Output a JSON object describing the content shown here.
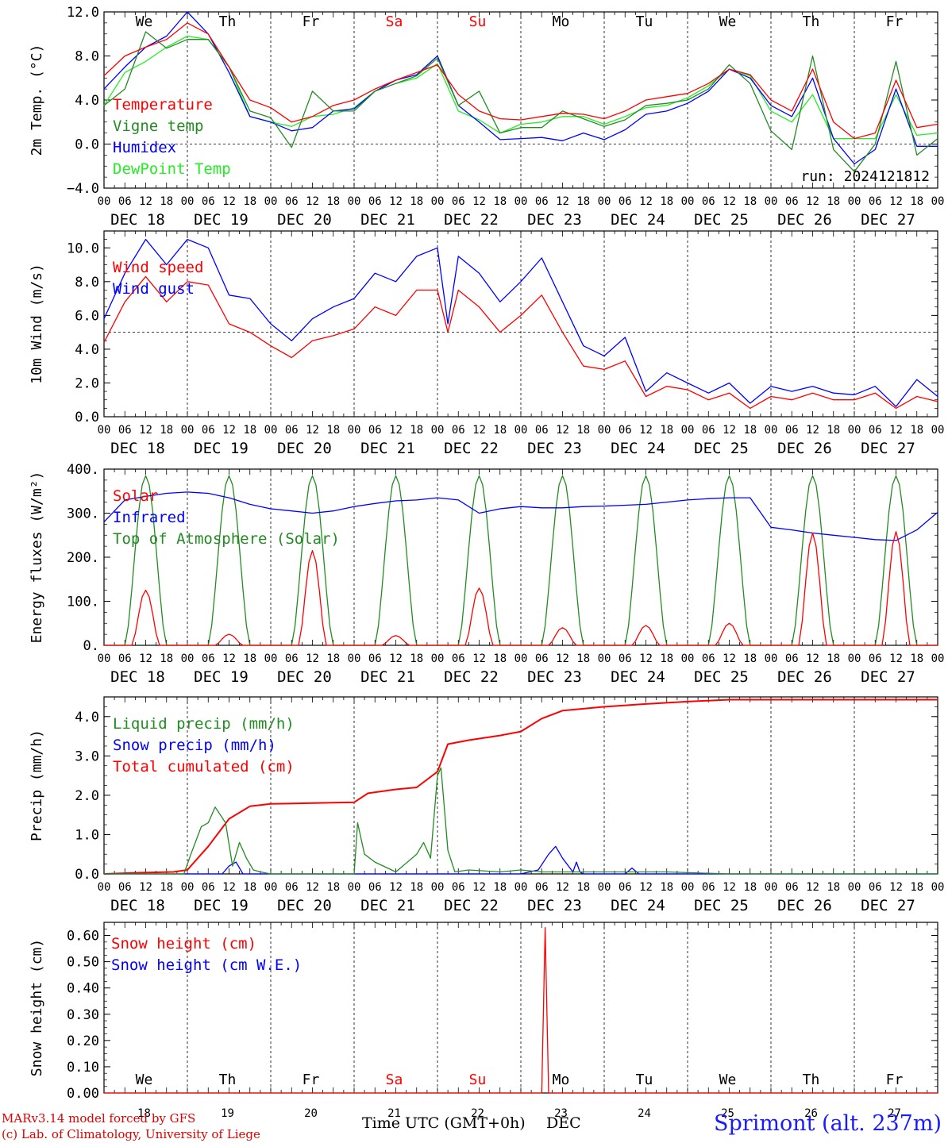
{
  "footer": {
    "credit_model": "MARv3.14 model forced by GFS",
    "credit_lab": "(c) Lab. of Climatology, University of Liege",
    "station": "Sprimont (alt. 237m)",
    "x_title": "Time UTC (GMT+0h)",
    "x_title_month": "DEC"
  },
  "colors": {
    "red": "#ff0000",
    "darkgreen": "#228b22",
    "blue": "#0000ff",
    "lightgreen": "#22ee22",
    "weekend": "#ff0000"
  },
  "time_axis": {
    "hours_total": 240,
    "hour_ticks": [
      "00",
      "06",
      "12",
      "18"
    ],
    "days": [
      {
        "dow": "We",
        "date": "DEC 18",
        "num": "18",
        "weekend": false
      },
      {
        "dow": "Th",
        "date": "DEC 19",
        "num": "19",
        "weekend": false
      },
      {
        "dow": "Fr",
        "date": "DEC 20",
        "num": "20",
        "weekend": false
      },
      {
        "dow": "Sa",
        "date": "DEC 21",
        "num": "21",
        "weekend": true
      },
      {
        "dow": "Su",
        "date": "DEC 22",
        "num": "22",
        "weekend": true
      },
      {
        "dow": "Mo",
        "date": "DEC 23",
        "num": "23",
        "weekend": false
      },
      {
        "dow": "Tu",
        "date": "DEC 24",
        "num": "24",
        "weekend": false
      },
      {
        "dow": "We",
        "date": "DEC 25",
        "num": "25",
        "weekend": false
      },
      {
        "dow": "Th",
        "date": "DEC 26",
        "num": "26",
        "weekend": false
      },
      {
        "dow": "Fr",
        "date": "DEC 27",
        "num": "27",
        "weekend": false
      }
    ]
  },
  "chart_data": [
    {
      "type": "line",
      "ylabel": "2m Temp. (°C)",
      "ylim": [
        -4,
        12
      ],
      "yticks": [
        -4,
        0,
        4,
        8,
        12
      ],
      "ytick_labels": [
        "-4.0",
        "0.0",
        "4.0",
        "8.0",
        "12.0"
      ],
      "ref_line": 0,
      "annotation": "run: 2024121812",
      "series": [
        {
          "name": "Temperature",
          "color": "red",
          "x": [
            0,
            6,
            12,
            18,
            24,
            30,
            36,
            42,
            48,
            54,
            60,
            66,
            72,
            78,
            84,
            90,
            96,
            102,
            108,
            114,
            120,
            126,
            132,
            138,
            144,
            150,
            156,
            162,
            168,
            174,
            180,
            186,
            192,
            198,
            204,
            210,
            216,
            222,
            228,
            234,
            240
          ],
          "y": [
            6.2,
            8.0,
            8.8,
            9.5,
            11.0,
            10.0,
            7.0,
            4.0,
            3.3,
            2.0,
            2.5,
            3.5,
            4.0,
            5.0,
            5.8,
            6.5,
            7.2,
            4.5,
            3.0,
            2.3,
            2.2,
            2.5,
            2.8,
            2.7,
            2.3,
            3.0,
            4.0,
            4.3,
            4.6,
            5.5,
            6.8,
            6.3,
            4.0,
            3.0,
            6.8,
            2.0,
            0.5,
            1.0,
            5.8,
            1.5,
            1.8
          ]
        },
        {
          "name": "Vigne temp",
          "color": "darkgreen",
          "x": [
            0,
            6,
            12,
            18,
            24,
            30,
            36,
            42,
            48,
            54,
            60,
            66,
            72,
            78,
            84,
            90,
            96,
            102,
            108,
            114,
            120,
            126,
            132,
            138,
            144,
            150,
            156,
            162,
            168,
            174,
            180,
            186,
            192,
            198,
            204,
            210,
            216,
            222,
            228,
            234,
            240
          ],
          "y": [
            3.5,
            5.0,
            10.2,
            8.7,
            9.5,
            9.5,
            7.0,
            3.0,
            2.4,
            -0.3,
            4.8,
            3.0,
            3.0,
            4.8,
            5.5,
            6.2,
            7.8,
            3.5,
            4.8,
            1.0,
            1.5,
            1.5,
            3.0,
            2.3,
            1.6,
            2.2,
            3.5,
            3.7,
            4.0,
            5.0,
            7.2,
            5.5,
            1.2,
            -0.5,
            8.0,
            -0.5,
            -2.5,
            0.0,
            7.5,
            -1.0,
            0.5
          ]
        },
        {
          "name": "Humidex",
          "color": "blue",
          "x": [
            0,
            6,
            12,
            18,
            24,
            30,
            36,
            42,
            48,
            54,
            60,
            66,
            72,
            78,
            84,
            90,
            96,
            102,
            108,
            114,
            120,
            126,
            132,
            138,
            144,
            150,
            156,
            162,
            168,
            174,
            180,
            186,
            192,
            198,
            204,
            210,
            216,
            222,
            228,
            234,
            240
          ],
          "y": [
            5.0,
            7.0,
            8.8,
            9.8,
            12.0,
            10.0,
            6.5,
            2.5,
            2.0,
            1.2,
            1.5,
            3.0,
            3.2,
            4.8,
            5.8,
            6.3,
            8.0,
            3.5,
            2.0,
            0.4,
            0.5,
            0.6,
            0.3,
            1.0,
            0.4,
            1.3,
            2.7,
            3.0,
            3.7,
            4.8,
            6.8,
            6.0,
            3.5,
            2.5,
            6.0,
            0.5,
            -1.8,
            -0.5,
            5.0,
            -0.2,
            -0.2
          ]
        },
        {
          "name": "DewPoint Temp",
          "color": "lightgreen",
          "x": [
            0,
            6,
            12,
            18,
            24,
            30,
            36,
            42,
            48,
            54,
            60,
            66,
            72,
            78,
            84,
            90,
            96,
            102,
            108,
            114,
            120,
            126,
            132,
            138,
            144,
            150,
            156,
            162,
            168,
            174,
            180,
            186,
            192,
            198,
            204,
            210,
            216,
            222,
            228,
            234,
            240
          ],
          "y": [
            3.5,
            6.5,
            7.5,
            8.8,
            9.8,
            9.5,
            7.0,
            2.5,
            2.0,
            1.6,
            2.5,
            2.7,
            3.3,
            4.8,
            5.5,
            6.0,
            7.3,
            3.0,
            2.2,
            1.0,
            1.8,
            2.0,
            2.5,
            2.5,
            1.8,
            2.5,
            3.3,
            3.5,
            4.2,
            5.3,
            6.8,
            6.2,
            3.0,
            2.0,
            4.5,
            0.5,
            0.5,
            0.5,
            4.5,
            0.8,
            1.0
          ]
        }
      ]
    },
    {
      "type": "line",
      "ylabel": "10m Wind (m/s)",
      "ylim": [
        0,
        11
      ],
      "yticks": [
        0,
        2,
        4,
        6,
        8,
        10
      ],
      "ytick_labels": [
        "0.0",
        "2.0",
        "4.0",
        "6.0",
        "8.0",
        "10.0"
      ],
      "ref_line": 5,
      "annotation": "",
      "series": [
        {
          "name": "Wind speed",
          "color": "red",
          "x": [
            0,
            6,
            12,
            18,
            24,
            30,
            36,
            42,
            48,
            54,
            60,
            66,
            72,
            78,
            84,
            90,
            96,
            99,
            102,
            108,
            114,
            120,
            126,
            132,
            138,
            144,
            150,
            156,
            162,
            168,
            174,
            180,
            186,
            192,
            198,
            204,
            210,
            216,
            222,
            228,
            234,
            240
          ],
          "y": [
            4.4,
            6.8,
            8.3,
            6.8,
            8.0,
            7.8,
            5.5,
            5.0,
            4.2,
            3.5,
            4.5,
            4.8,
            5.2,
            6.5,
            6.0,
            7.5,
            7.5,
            5.0,
            7.5,
            6.5,
            5.0,
            6.0,
            7.2,
            5.0,
            3.0,
            2.8,
            3.3,
            1.2,
            1.8,
            1.6,
            1.0,
            1.4,
            0.5,
            1.2,
            1.0,
            1.4,
            1.0,
            1.0,
            1.4,
            0.5,
            1.2,
            0.9
          ]
        },
        {
          "name": "Wind gust",
          "color": "blue",
          "x": [
            0,
            6,
            12,
            18,
            24,
            30,
            36,
            42,
            48,
            54,
            60,
            66,
            72,
            78,
            84,
            90,
            96,
            99,
            102,
            108,
            114,
            120,
            126,
            132,
            138,
            144,
            150,
            156,
            162,
            168,
            174,
            180,
            186,
            192,
            198,
            204,
            210,
            216,
            222,
            228,
            234,
            240
          ],
          "y": [
            5.8,
            8.5,
            10.5,
            9.0,
            10.5,
            10.0,
            7.2,
            7.0,
            5.5,
            4.5,
            5.8,
            6.5,
            7.0,
            8.5,
            8.0,
            9.5,
            10.0,
            5.5,
            9.5,
            8.5,
            6.8,
            8.0,
            9.4,
            6.8,
            4.2,
            3.6,
            4.7,
            1.5,
            2.6,
            2.0,
            1.4,
            2.0,
            0.8,
            1.8,
            1.5,
            1.8,
            1.4,
            1.3,
            1.8,
            0.6,
            2.2,
            1.2
          ]
        }
      ]
    },
    {
      "type": "line",
      "ylabel": "Energy fluxes (W/m²)",
      "ylim": [
        0,
        400
      ],
      "yticks": [
        0,
        100,
        200,
        300,
        400
      ],
      "ytick_labels": [
        "0.",
        "100.",
        "200.",
        "300.",
        "400."
      ],
      "ref_line": null,
      "annotation": "",
      "series": [
        {
          "name": "Solar",
          "color": "red",
          "peaks": [
            125,
            25,
            215,
            22,
            130,
            40,
            45,
            50,
            255,
            258
          ]
        },
        {
          "name": "Infrared",
          "color": "blue",
          "x": [
            0,
            6,
            12,
            18,
            24,
            30,
            36,
            42,
            48,
            54,
            60,
            66,
            72,
            78,
            84,
            90,
            96,
            102,
            108,
            114,
            120,
            126,
            132,
            138,
            144,
            150,
            156,
            162,
            168,
            174,
            180,
            186,
            192,
            198,
            204,
            210,
            216,
            222,
            228,
            234,
            240
          ],
          "y": [
            280,
            330,
            338,
            345,
            348,
            345,
            335,
            320,
            310,
            305,
            300,
            305,
            315,
            322,
            328,
            330,
            335,
            330,
            300,
            310,
            315,
            312,
            312,
            315,
            316,
            318,
            320,
            325,
            330,
            333,
            335,
            335,
            268,
            262,
            255,
            250,
            245,
            240,
            238,
            262,
            302
          ]
        },
        {
          "name": "Top of Atmosphere (Solar)",
          "color": "darkgreen",
          "peaks": [
            385,
            385,
            385,
            385,
            385,
            385,
            385,
            385,
            385,
            385
          ]
        }
      ]
    },
    {
      "type": "line",
      "ylabel": "Precip (mm/h)",
      "ylim": [
        0,
        4.5
      ],
      "yticks": [
        0,
        1,
        2,
        3,
        4
      ],
      "ytick_labels": [
        "0.0",
        "1.0",
        "2.0",
        "3.0",
        "4.0"
      ],
      "ref_line": null,
      "annotation": "",
      "series": [
        {
          "name": "Liquid precip (mm/h)",
          "color": "darkgreen",
          "x": [
            0,
            23,
            25,
            28,
            30,
            32,
            35,
            37,
            39,
            41,
            43,
            45,
            48,
            60,
            72,
            73,
            75,
            78,
            84,
            90,
            92,
            94,
            96,
            97,
            99,
            101,
            105,
            114,
            120,
            126,
            132,
            144,
            162,
            180,
            240
          ],
          "y": [
            0,
            0,
            0.5,
            1.2,
            1.3,
            1.7,
            1.3,
            0.2,
            0.8,
            0.4,
            0.1,
            0.05,
            0,
            0,
            0,
            1.3,
            0.5,
            0.3,
            0.05,
            0.5,
            0.8,
            0.4,
            2.5,
            2.7,
            0.6,
            0.05,
            0.1,
            0.05,
            0.1,
            0.05,
            0.05,
            0.05,
            0.05,
            0,
            0
          ]
        },
        {
          "name": "Snow precip (mm/h)",
          "color": "blue",
          "x": [
            0,
            34,
            36,
            38,
            40,
            48,
            120,
            125,
            128,
            130,
            132,
            135,
            136,
            137,
            138,
            140,
            150,
            152,
            154,
            160,
            240
          ],
          "y": [
            0,
            0,
            0.2,
            0.3,
            0,
            0,
            0,
            0.1,
            0.5,
            0.7,
            0.4,
            0.05,
            0.3,
            0.05,
            0,
            0,
            0,
            0.15,
            0,
            0,
            0
          ]
        },
        {
          "name": "Total cumulated (cm)",
          "color": "red",
          "x": [
            0,
            10,
            20,
            24,
            30,
            36,
            42,
            48,
            60,
            72,
            76,
            84,
            90,
            96,
            99,
            105,
            114,
            120,
            126,
            132,
            138,
            144,
            156,
            168,
            180,
            192,
            240
          ],
          "y": [
            0,
            0.03,
            0.05,
            0.1,
            0.7,
            1.4,
            1.72,
            1.78,
            1.8,
            1.82,
            2.05,
            2.15,
            2.2,
            2.6,
            3.3,
            3.4,
            3.52,
            3.62,
            3.95,
            4.15,
            4.2,
            4.25,
            4.32,
            4.38,
            4.43,
            4.43,
            4.43
          ]
        }
      ]
    },
    {
      "type": "line",
      "ylabel": "Snow height (cm)",
      "ylim": [
        0,
        0.65
      ],
      "yticks": [
        0,
        0.1,
        0.2,
        0.3,
        0.4,
        0.5,
        0.6
      ],
      "ytick_labels": [
        "0.00",
        "0.10",
        "0.20",
        "0.30",
        "0.40",
        "0.50",
        "0.60"
      ],
      "ref_line": null,
      "annotation": "",
      "series": [
        {
          "name": "Snow height (cm)",
          "color": "red",
          "x": [
            0,
            126,
            127,
            128,
            240
          ],
          "y": [
            0,
            0,
            0.63,
            0,
            0
          ]
        },
        {
          "name": "Snow height (cm W.E.)",
          "color": "blue",
          "x": [],
          "y": []
        }
      ]
    }
  ]
}
